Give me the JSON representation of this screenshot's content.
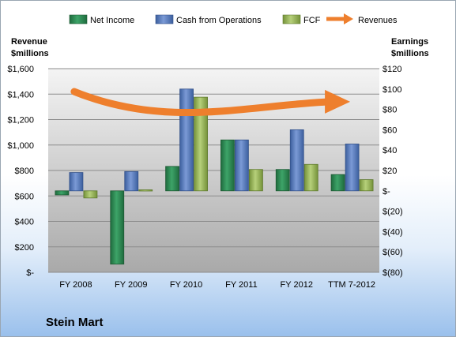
{
  "chart_data": {
    "type": "bar",
    "title": "Stein Mart",
    "categories": [
      "FY 2008",
      "FY 2009",
      "FY 2010",
      "FY 2011",
      "FY 2012",
      "TTM 7-2012"
    ],
    "left_axis": {
      "label_line1": "Revenue",
      "label_line2": "$millions",
      "range": [
        0,
        1600
      ],
      "ticks": [
        0,
        200,
        400,
        600,
        800,
        1000,
        1200,
        1400,
        1600
      ],
      "tick_labels": [
        "$-",
        "$200",
        "$400",
        "$600",
        "$800",
        "$1,000",
        "$1,200",
        "$1,400",
        "$1,600"
      ]
    },
    "right_axis": {
      "label_line1": "Earnings",
      "label_line2": "$millions",
      "range": [
        -80,
        120
      ],
      "ticks": [
        -80,
        -60,
        -40,
        -20,
        0,
        20,
        40,
        60,
        80,
        100,
        120
      ],
      "tick_labels": [
        "$(80)",
        "$(60)",
        "$(40)",
        "$(20)",
        "$-",
        "$20",
        "$40",
        "$60",
        "$80",
        "$100",
        "$120"
      ]
    },
    "series": [
      {
        "name": "Net Income",
        "axis": "right",
        "color": "#2e8b57",
        "values": [
          -4,
          -72,
          24,
          50,
          21,
          16
        ]
      },
      {
        "name": "Cash from Operations",
        "axis": "right",
        "color": "#5a7fc0",
        "values": [
          18,
          19,
          100,
          50,
          60,
          46
        ]
      },
      {
        "name": "FCF",
        "axis": "right",
        "color": "#9bbb59",
        "values": [
          -7,
          1,
          92,
          21,
          26,
          11
        ]
      }
    ],
    "arrow_series": {
      "name": "Revenues",
      "color": "#ee7f2d",
      "start": 1420,
      "end": 1340
    },
    "grid": true,
    "legend_position": "top"
  }
}
